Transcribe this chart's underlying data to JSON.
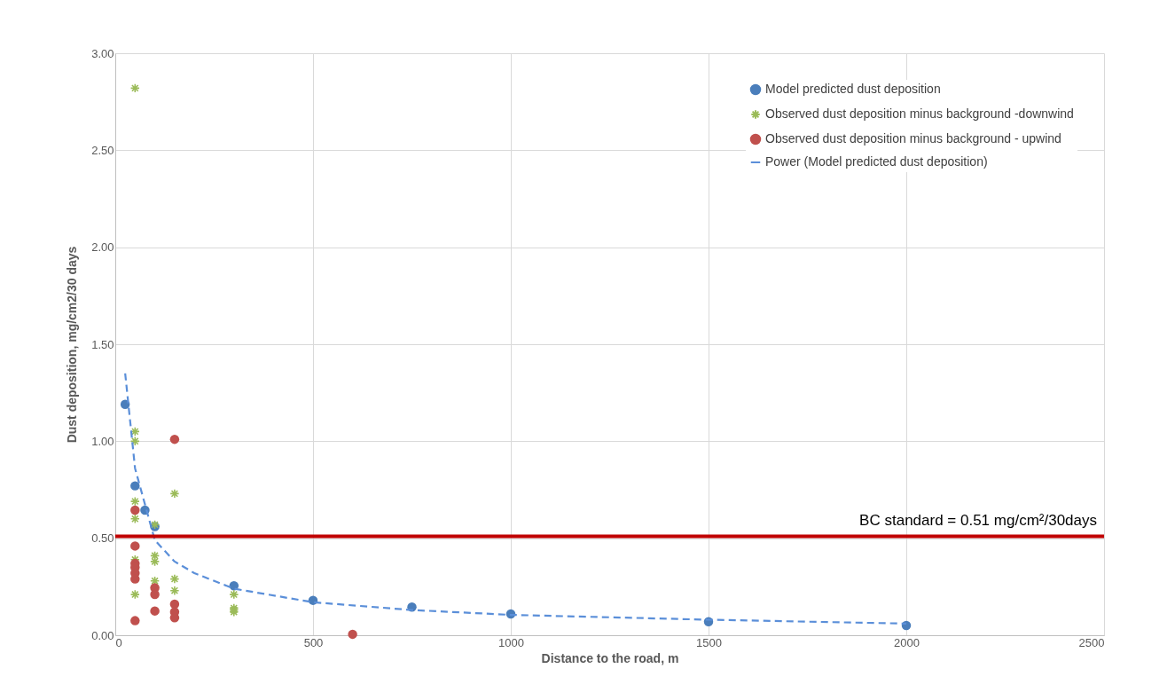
{
  "chart_data": {
    "type": "scatter",
    "xlabel": "Distance to the road, m",
    "ylabel": "Dust deposition, mg/cm2/30 days",
    "xlim": [
      0,
      2500
    ],
    "xticks": [
      0,
      500,
      1000,
      1500,
      2000,
      2500
    ],
    "ylim": [
      0,
      3
    ],
    "yticks": [
      {
        "value": 0,
        "label": "0.00"
      },
      {
        "value": 0.5,
        "label": "0.50"
      },
      {
        "value": 1,
        "label": "1.00"
      },
      {
        "value": 1.5,
        "label": "1.50"
      },
      {
        "value": 2,
        "label": "2.00"
      },
      {
        "value": 2.5,
        "label": "2.50"
      },
      {
        "value": 3,
        "label": "3.00"
      }
    ],
    "grid": true,
    "legend": "top right",
    "series": [
      {
        "name": "Model predicted dust deposition",
        "marker": "circle",
        "color": "#4a7ebb",
        "x": [
          25,
          50,
          75,
          100,
          300,
          500,
          750,
          1000,
          1500,
          2000
        ],
        "values": [
          1.19,
          0.77,
          0.645,
          0.56,
          0.255,
          0.18,
          0.145,
          0.11,
          0.07,
          0.05
        ]
      },
      {
        "name": "Observed dust deposition minus background -downwind",
        "marker": "cross",
        "color": "#9bbb59",
        "x": [
          50,
          50,
          50,
          50,
          50,
          50,
          50,
          100,
          100,
          100,
          100,
          150,
          150,
          150,
          300,
          300,
          300,
          300
        ],
        "values": [
          2.82,
          1.05,
          1.0,
          0.69,
          0.6,
          0.39,
          0.21,
          0.57,
          0.41,
          0.38,
          0.28,
          0.73,
          0.29,
          0.23,
          0.21,
          0.14,
          0.13,
          0.12
        ]
      },
      {
        "name": "Observed dust deposition minus background - upwind",
        "marker": "circle",
        "color": "#c0504d",
        "x": [
          50,
          50,
          50,
          50,
          50,
          50,
          50,
          100,
          100,
          100,
          150,
          150,
          150,
          150,
          600
        ],
        "values": [
          0.645,
          0.46,
          0.37,
          0.35,
          0.32,
          0.29,
          0.075,
          0.245,
          0.21,
          0.125,
          1.01,
          0.16,
          0.12,
          0.09,
          0.005
        ]
      },
      {
        "name": "Power (Model predicted dust deposition)",
        "type": "line",
        "line_style": "dashed",
        "color": "#5b8fd9",
        "x": [
          25,
          50,
          100,
          150,
          200,
          300,
          500,
          750,
          1000,
          1500,
          2000
        ],
        "values": [
          1.35,
          0.86,
          0.49,
          0.38,
          0.32,
          0.24,
          0.17,
          0.13,
          0.105,
          0.08,
          0.06
        ]
      }
    ],
    "ref_lines": [
      {
        "axis": "y",
        "value": 0.51,
        "label": "BC standard = 0.51 mg/cm²/30days",
        "color": "#c00000"
      }
    ]
  }
}
